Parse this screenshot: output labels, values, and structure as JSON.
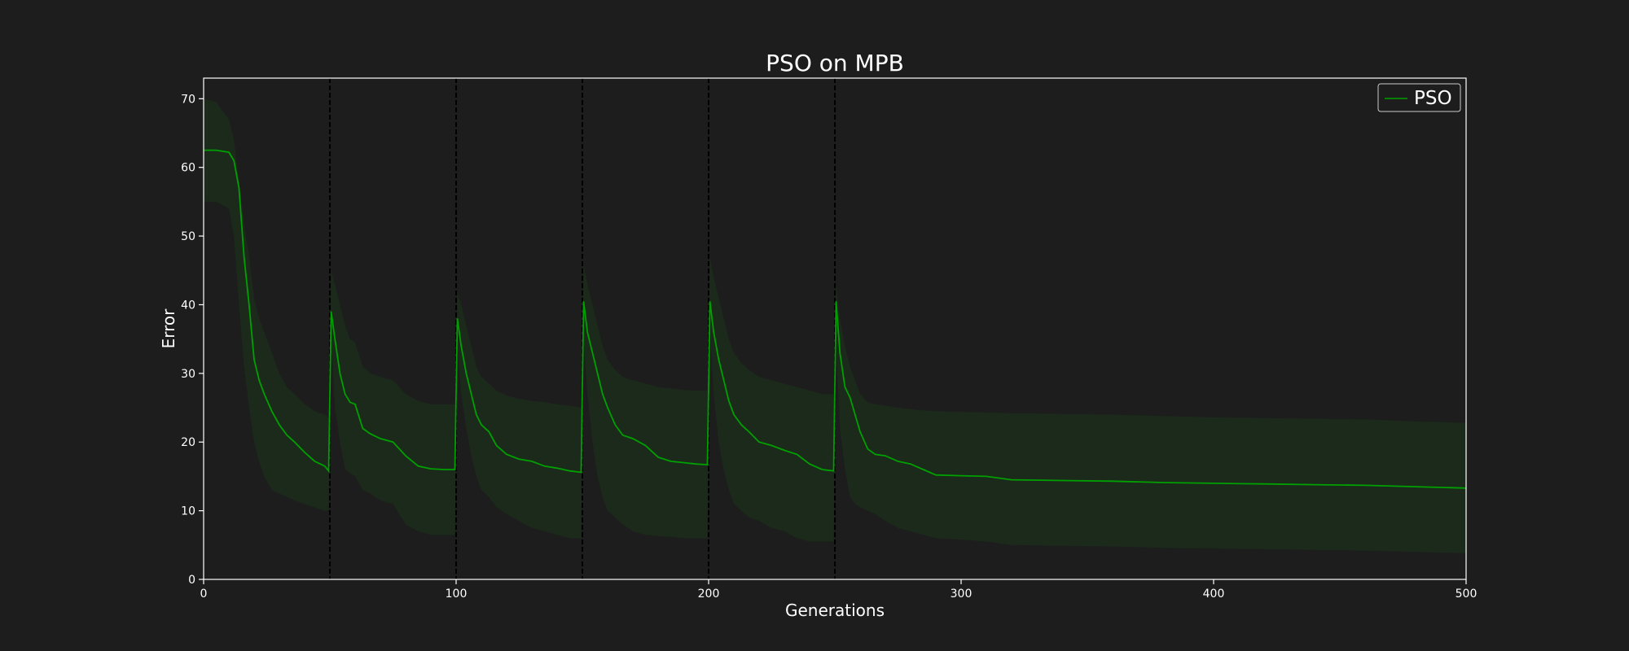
{
  "chart_data": {
    "type": "line",
    "title": "PSO on MPB",
    "xlabel": "Generations",
    "ylabel": "Error",
    "xlim": [
      0,
      500
    ],
    "ylim": [
      0,
      73
    ],
    "xticks": [
      0,
      100,
      200,
      300,
      400,
      500
    ],
    "yticks": [
      0,
      10,
      20,
      30,
      40,
      50,
      60,
      70
    ],
    "grid": false,
    "legend": {
      "position": "top-right",
      "entries": [
        "PSO"
      ]
    },
    "change_points": [
      50,
      100,
      150,
      200,
      250
    ],
    "colors": {
      "background": "#1d1d1d",
      "series": "#00a000",
      "band": "#1b2a1b",
      "axes": "#ffffff",
      "vlines": "#000000"
    },
    "series": [
      {
        "name": "PSO",
        "x": [
          0,
          5,
          10,
          12,
          14,
          16,
          18,
          20,
          22,
          24,
          27,
          30,
          33,
          36,
          40,
          44,
          48,
          49.5,
          50.5,
          52,
          54,
          56,
          58,
          60,
          63,
          66,
          70,
          75,
          80,
          85,
          90,
          95,
          99.5,
          100.5,
          102,
          104,
          106,
          108,
          110,
          113,
          116,
          120,
          125,
          130,
          135,
          140,
          145,
          149.5,
          150.5,
          152,
          154,
          156,
          158,
          160,
          163,
          166,
          170,
          175,
          180,
          185,
          190,
          195,
          199.5,
          200.5,
          202,
          204,
          206,
          208,
          210,
          213,
          216,
          220,
          225,
          230,
          235,
          240,
          245,
          249.5,
          250.5,
          252,
          254,
          256,
          258,
          260,
          263,
          266,
          270,
          275,
          280,
          285,
          290,
          300,
          310,
          320,
          340,
          360,
          380,
          400,
          420,
          440,
          460,
          480,
          500
        ],
        "y": [
          62.5,
          62.5,
          62.2,
          61.0,
          57.0,
          47.0,
          40.0,
          32.0,
          29.0,
          27.0,
          24.5,
          22.5,
          21.0,
          20.0,
          18.5,
          17.2,
          16.5,
          15.8,
          39.0,
          35.0,
          30.0,
          27.0,
          25.8,
          25.5,
          22.0,
          21.2,
          20.5,
          20.0,
          18.0,
          16.5,
          16.1,
          16.0,
          16.0,
          38.0,
          34.0,
          30.0,
          27.0,
          24.0,
          22.5,
          21.5,
          19.5,
          18.2,
          17.5,
          17.2,
          16.5,
          16.2,
          15.8,
          15.6,
          40.5,
          36.0,
          33.0,
          30.0,
          27.0,
          25.0,
          22.5,
          21.0,
          20.5,
          19.5,
          17.8,
          17.2,
          17.0,
          16.8,
          16.7,
          40.5,
          36.0,
          32.0,
          29.0,
          26.0,
          24.0,
          22.5,
          21.5,
          20.0,
          19.5,
          18.8,
          18.2,
          16.8,
          16.0,
          15.8,
          40.5,
          33.0,
          28.0,
          26.5,
          24.0,
          21.5,
          19.0,
          18.2,
          18.0,
          17.2,
          16.8,
          16.0,
          15.2,
          15.1,
          15.0,
          14.5,
          14.4,
          14.3,
          14.1,
          14.0,
          13.9,
          13.8,
          13.7,
          13.5,
          13.3
        ]
      }
    ],
    "band": {
      "name": "spread",
      "upper": [
        70.0,
        69.5,
        67.0,
        64.0,
        58.0,
        52.0,
        47.0,
        41.0,
        38.0,
        36.0,
        33.0,
        30.0,
        28.0,
        27.0,
        25.5,
        24.5,
        24.0,
        23.5,
        45.0,
        43.0,
        40.0,
        37.0,
        35.0,
        34.5,
        31.0,
        30.0,
        29.5,
        29.0,
        27.0,
        26.0,
        25.5,
        25.5,
        25.5,
        42.0,
        40.0,
        37.0,
        34.0,
        31.0,
        29.5,
        28.5,
        27.5,
        26.8,
        26.3,
        26.0,
        25.8,
        25.5,
        25.3,
        25.0,
        46.0,
        43.0,
        40.0,
        37.0,
        34.0,
        32.0,
        30.5,
        29.5,
        29.0,
        28.5,
        28.0,
        27.8,
        27.6,
        27.5,
        27.5,
        47.0,
        44.0,
        41.0,
        38.0,
        35.0,
        33.0,
        31.5,
        30.5,
        29.5,
        29.0,
        28.5,
        28.0,
        27.5,
        27.0,
        27.0,
        43.0,
        38.0,
        34.0,
        31.0,
        29.0,
        27.0,
        25.8,
        25.5,
        25.3,
        25.0,
        24.8,
        24.6,
        24.5,
        24.4,
        24.3,
        24.2,
        24.1,
        24.0,
        23.8,
        23.6,
        23.5,
        23.4,
        23.3,
        23.0,
        22.8
      ],
      "lower": [
        55.0,
        55.0,
        54.0,
        50.0,
        40.0,
        31.0,
        25.0,
        20.0,
        17.0,
        15.0,
        13.0,
        12.5,
        12.0,
        11.5,
        11.0,
        10.5,
        10.0,
        10.0,
        35.0,
        25.0,
        20.0,
        16.0,
        15.5,
        15.0,
        13.0,
        12.5,
        11.5,
        11.0,
        8.0,
        7.0,
        6.5,
        6.5,
        6.5,
        34.0,
        27.0,
        22.0,
        18.0,
        15.0,
        13.0,
        12.0,
        10.5,
        9.5,
        8.5,
        7.5,
        7.0,
        6.5,
        6.0,
        6.0,
        35.0,
        27.0,
        20.0,
        15.0,
        12.0,
        10.0,
        9.0,
        8.0,
        7.0,
        6.5,
        6.3,
        6.2,
        6.0,
        6.0,
        6.0,
        36.0,
        27.0,
        20.0,
        16.0,
        13.0,
        11.0,
        10.0,
        9.0,
        8.5,
        7.5,
        7.0,
        6.0,
        5.5,
        5.5,
        5.5,
        34.0,
        22.0,
        16.0,
        12.0,
        11.0,
        10.5,
        10.0,
        9.5,
        8.5,
        7.5,
        7.0,
        6.5,
        6.0,
        5.8,
        5.5,
        5.0,
        4.9,
        4.8,
        4.6,
        4.5,
        4.4,
        4.3,
        4.2,
        4.0,
        3.8
      ]
    }
  }
}
